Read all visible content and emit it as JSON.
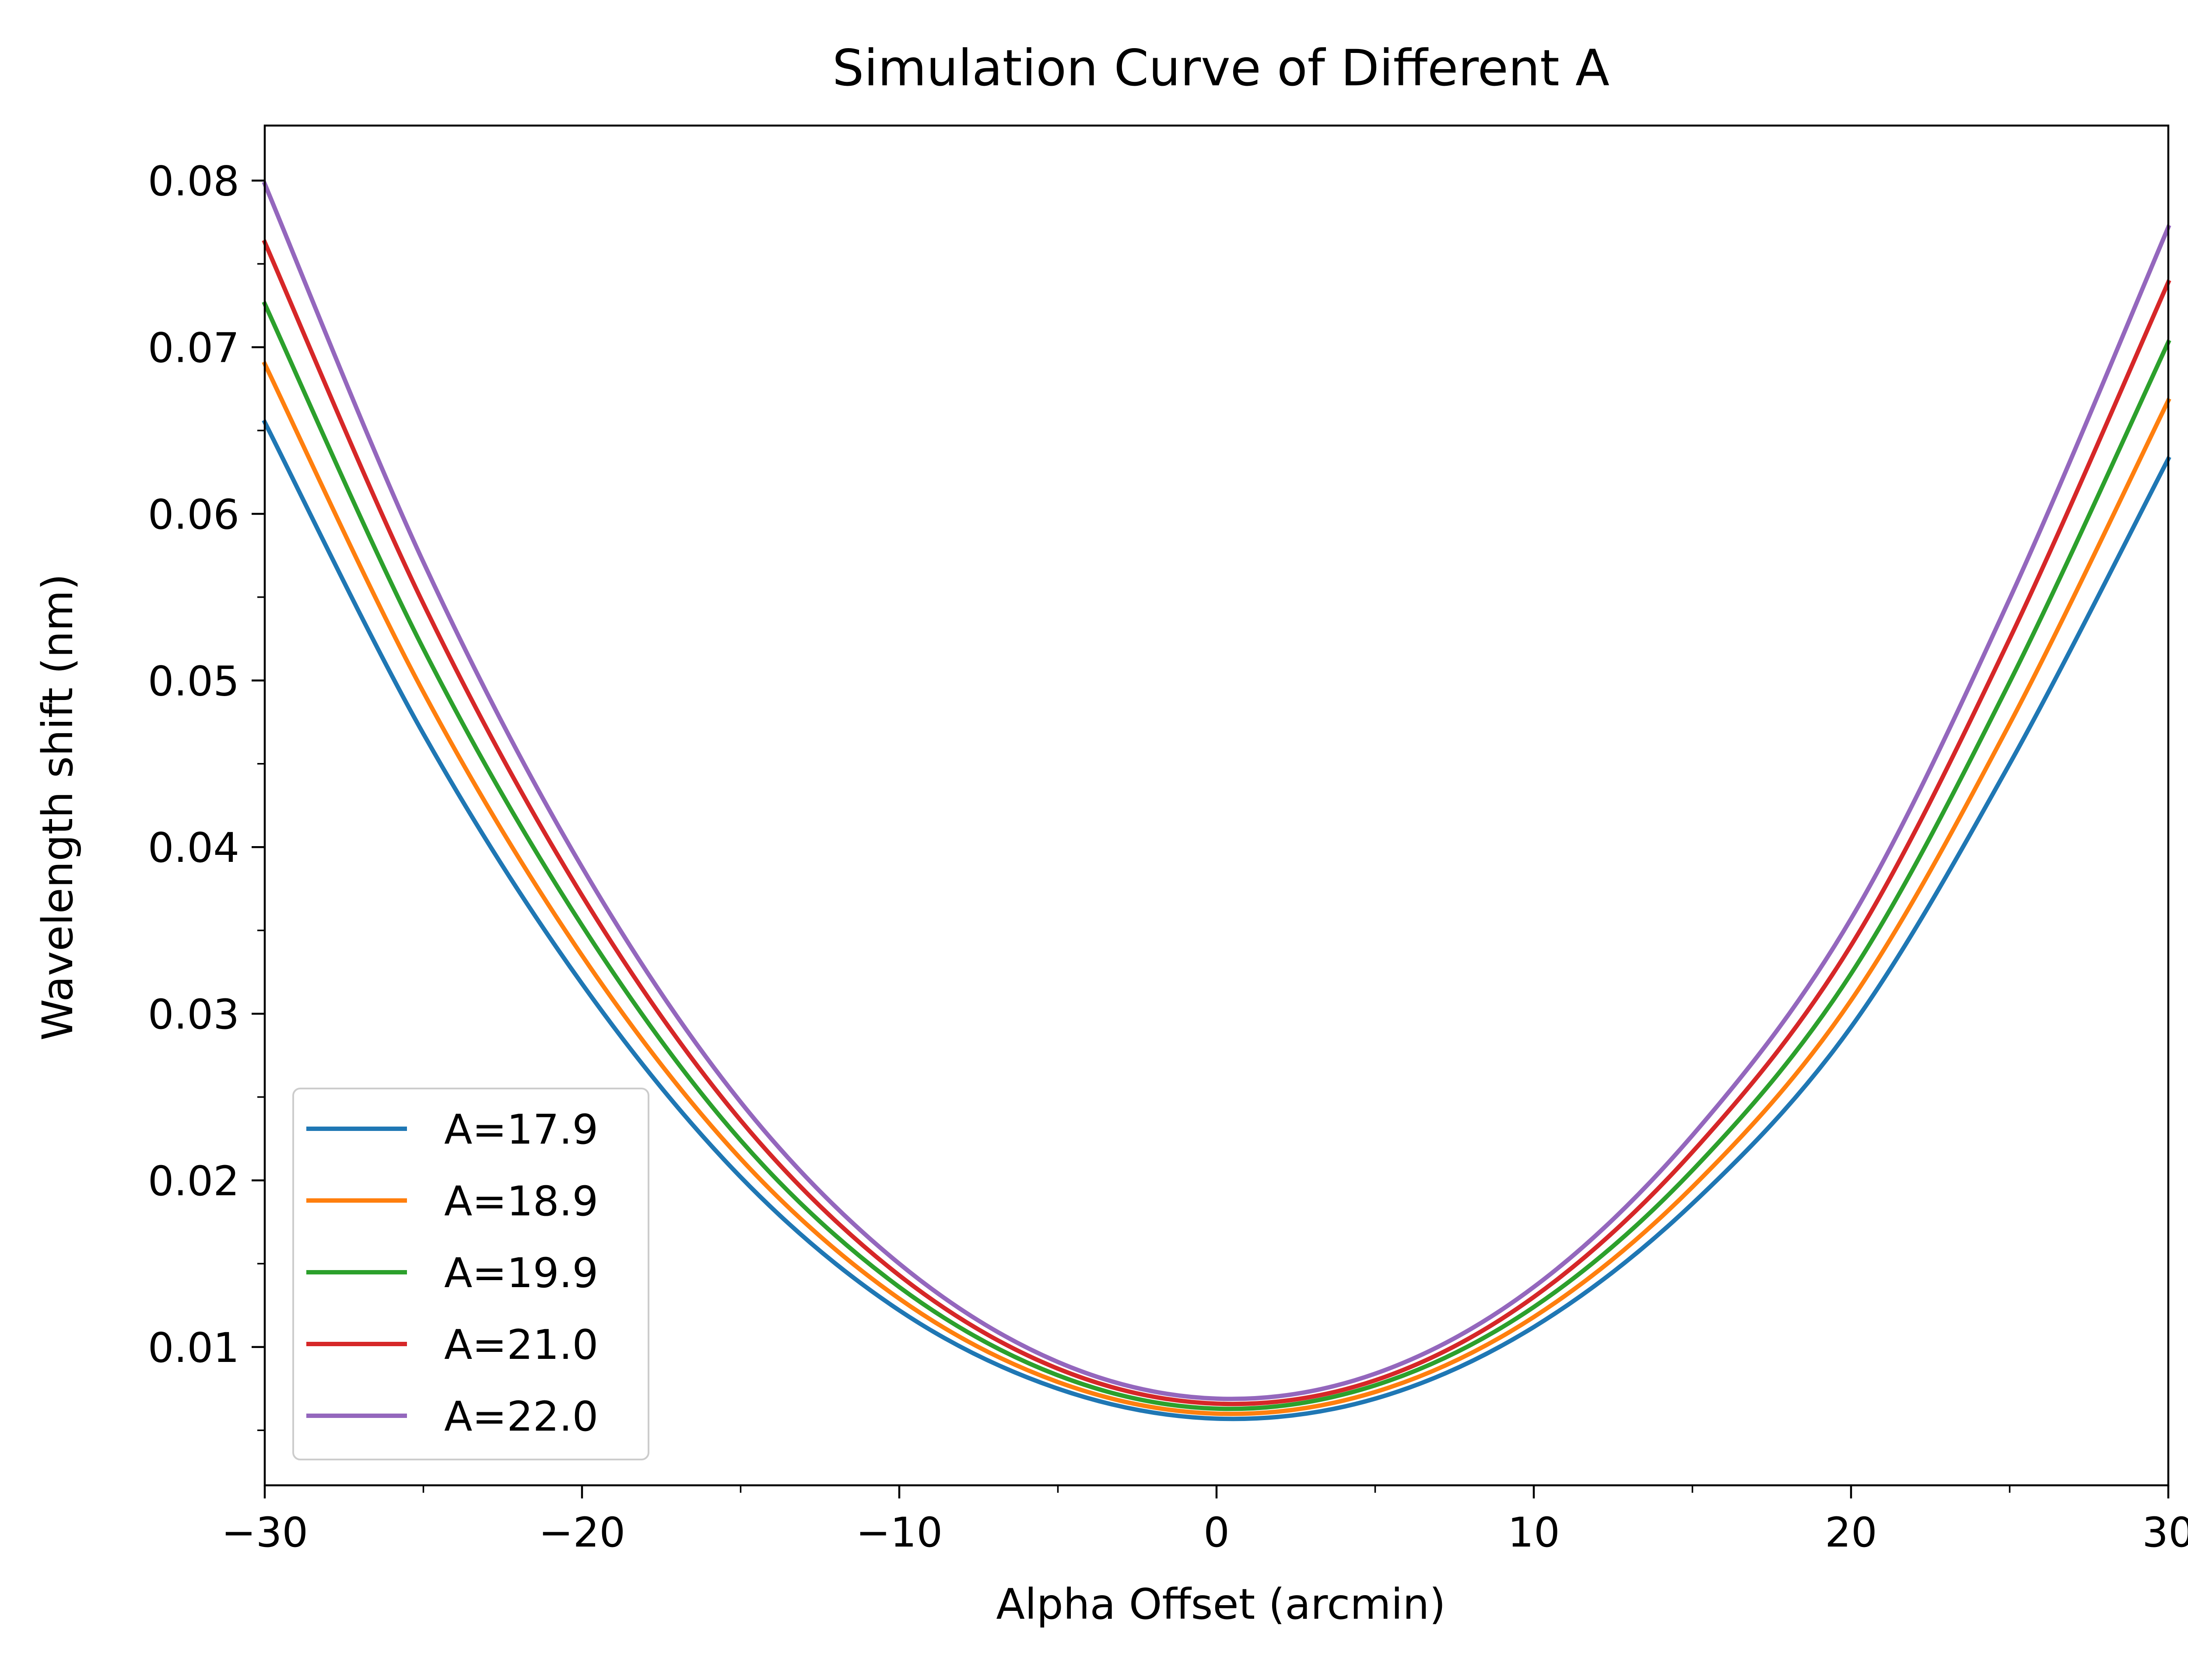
{
  "chart_data": {
    "type": "line",
    "title": "Simulation Curve of Different A",
    "xlabel": "Alpha Offset (arcmin)",
    "ylabel": "Wavelength shift (nm)",
    "xlim": [
      -30,
      30
    ],
    "ylim": [
      0.0017,
      0.0833
    ],
    "x_ticks": [
      -30,
      -20,
      -10,
      0,
      10,
      20,
      30
    ],
    "x_tick_labels": [
      "−30",
      "−20",
      "−10",
      "0",
      "10",
      "20",
      "30"
    ],
    "x_minor_ticks": [
      -25,
      -15,
      -5,
      5,
      15,
      25
    ],
    "y_ticks": [
      0.01,
      0.02,
      0.03,
      0.04,
      0.05,
      0.06,
      0.07,
      0.08
    ],
    "y_tick_labels": [
      "0.01",
      "0.02",
      "0.03",
      "0.04",
      "0.05",
      "0.06",
      "0.07",
      "0.08"
    ],
    "y_minor_ticks": [
      0.005,
      0.015,
      0.025,
      0.035,
      0.045,
      0.055,
      0.065,
      0.075
    ],
    "grid": false,
    "legend_position": "lower-left",
    "x": [
      -30,
      -25,
      -20,
      -15,
      -10,
      -5,
      0,
      5,
      10,
      15,
      20,
      25,
      30
    ],
    "series": [
      {
        "name": "A=17.9",
        "color": "#1f77b4",
        "values": [
          0.0655,
          0.0468,
          0.0318,
          0.0202,
          0.0122,
          0.0075,
          0.0057,
          0.0069,
          0.0112,
          0.0186,
          0.0292,
          0.045,
          0.0633
        ]
      },
      {
        "name": "A=18.9",
        "color": "#ff7f0e",
        "values": [
          0.069,
          0.0493,
          0.0335,
          0.0213,
          0.0129,
          0.0079,
          0.006,
          0.0073,
          0.0118,
          0.0196,
          0.0308,
          0.0474,
          0.0668
        ]
      },
      {
        "name": "A=19.9",
        "color": "#2ca02c",
        "values": [
          0.0726,
          0.0519,
          0.0353,
          0.0224,
          0.0136,
          0.0083,
          0.0063,
          0.0077,
          0.0124,
          0.0206,
          0.0324,
          0.0499,
          0.0703
        ]
      },
      {
        "name": "A=21.0",
        "color": "#d62728",
        "values": [
          0.0763,
          0.0546,
          0.0371,
          0.0236,
          0.0143,
          0.0087,
          0.0066,
          0.008,
          0.013,
          0.0217,
          0.0341,
          0.0525,
          0.0739
        ]
      },
      {
        "name": "A=22.0",
        "color": "#9467bd",
        "values": [
          0.0798,
          0.0571,
          0.0388,
          0.0247,
          0.015,
          0.0091,
          0.0069,
          0.0084,
          0.0136,
          0.0227,
          0.0357,
          0.0549,
          0.0772
        ]
      }
    ]
  }
}
